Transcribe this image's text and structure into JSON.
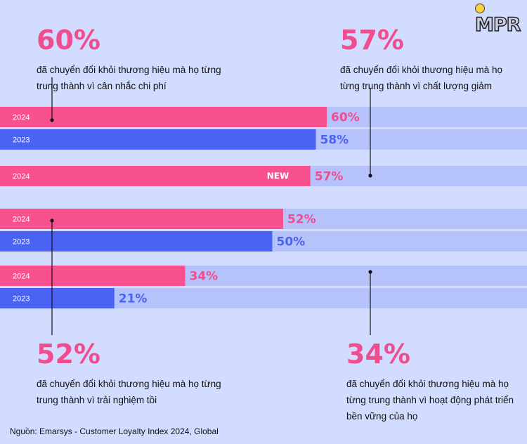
{
  "logo": {
    "text": "MPR"
  },
  "callouts": [
    {
      "value": "60%",
      "text": "đã chuyển đổi khỏi thương hiệu mà họ từng trung thành vì cân nhắc chi phí"
    },
    {
      "value": "57%",
      "text": "đã chuyển đổi khỏi thương hiệu mà họ từng trung thành vì chất lượng giảm"
    },
    {
      "value": "52%",
      "text": "đã chuyển đổi khỏi thương hiệu mà họ từng trung thành vì trải nghiệm tồi"
    },
    {
      "value": "34%",
      "text": "đã chuyển đổi khỏi thương hiệu mà họ từng trung thành vì hoạt động phát triển bền vững của họ"
    }
  ],
  "source": "Nguồn: Emarsys - Customer Loyalty Index 2024, Global",
  "colors": {
    "series_2024": "#f9508f",
    "series_2023": "#4a63f2",
    "track": "#b6c3fb",
    "label_2024": "#ef4d8f",
    "label_2023": "#4a63f2",
    "background": "#d2dcff"
  },
  "chart_data": {
    "type": "bar",
    "orientation": "horizontal",
    "categories": [
      "cân nhắc chi phí",
      "chất lượng giảm",
      "trải nghiệm tồi",
      "hoạt động phát triển bền vững"
    ],
    "xlim": [
      0,
      100
    ],
    "bars": [
      {
        "year": "2024",
        "value": 60,
        "label": "60%",
        "series": "2024",
        "badge": ""
      },
      {
        "year": "2023",
        "value": 58,
        "label": "58%",
        "series": "2023",
        "badge": ""
      },
      {
        "year": "2024",
        "value": 57,
        "label": "57%",
        "series": "2024",
        "badge": "NEW"
      },
      {
        "year": "2024",
        "value": 52,
        "label": "52%",
        "series": "2024",
        "badge": ""
      },
      {
        "year": "2023",
        "value": 50,
        "label": "50%",
        "series": "2023",
        "badge": ""
      },
      {
        "year": "2024",
        "value": 34,
        "label": "34%",
        "series": "2024",
        "badge": ""
      },
      {
        "year": "2023",
        "value": 21,
        "label": "21%",
        "series": "2023",
        "badge": ""
      }
    ]
  }
}
